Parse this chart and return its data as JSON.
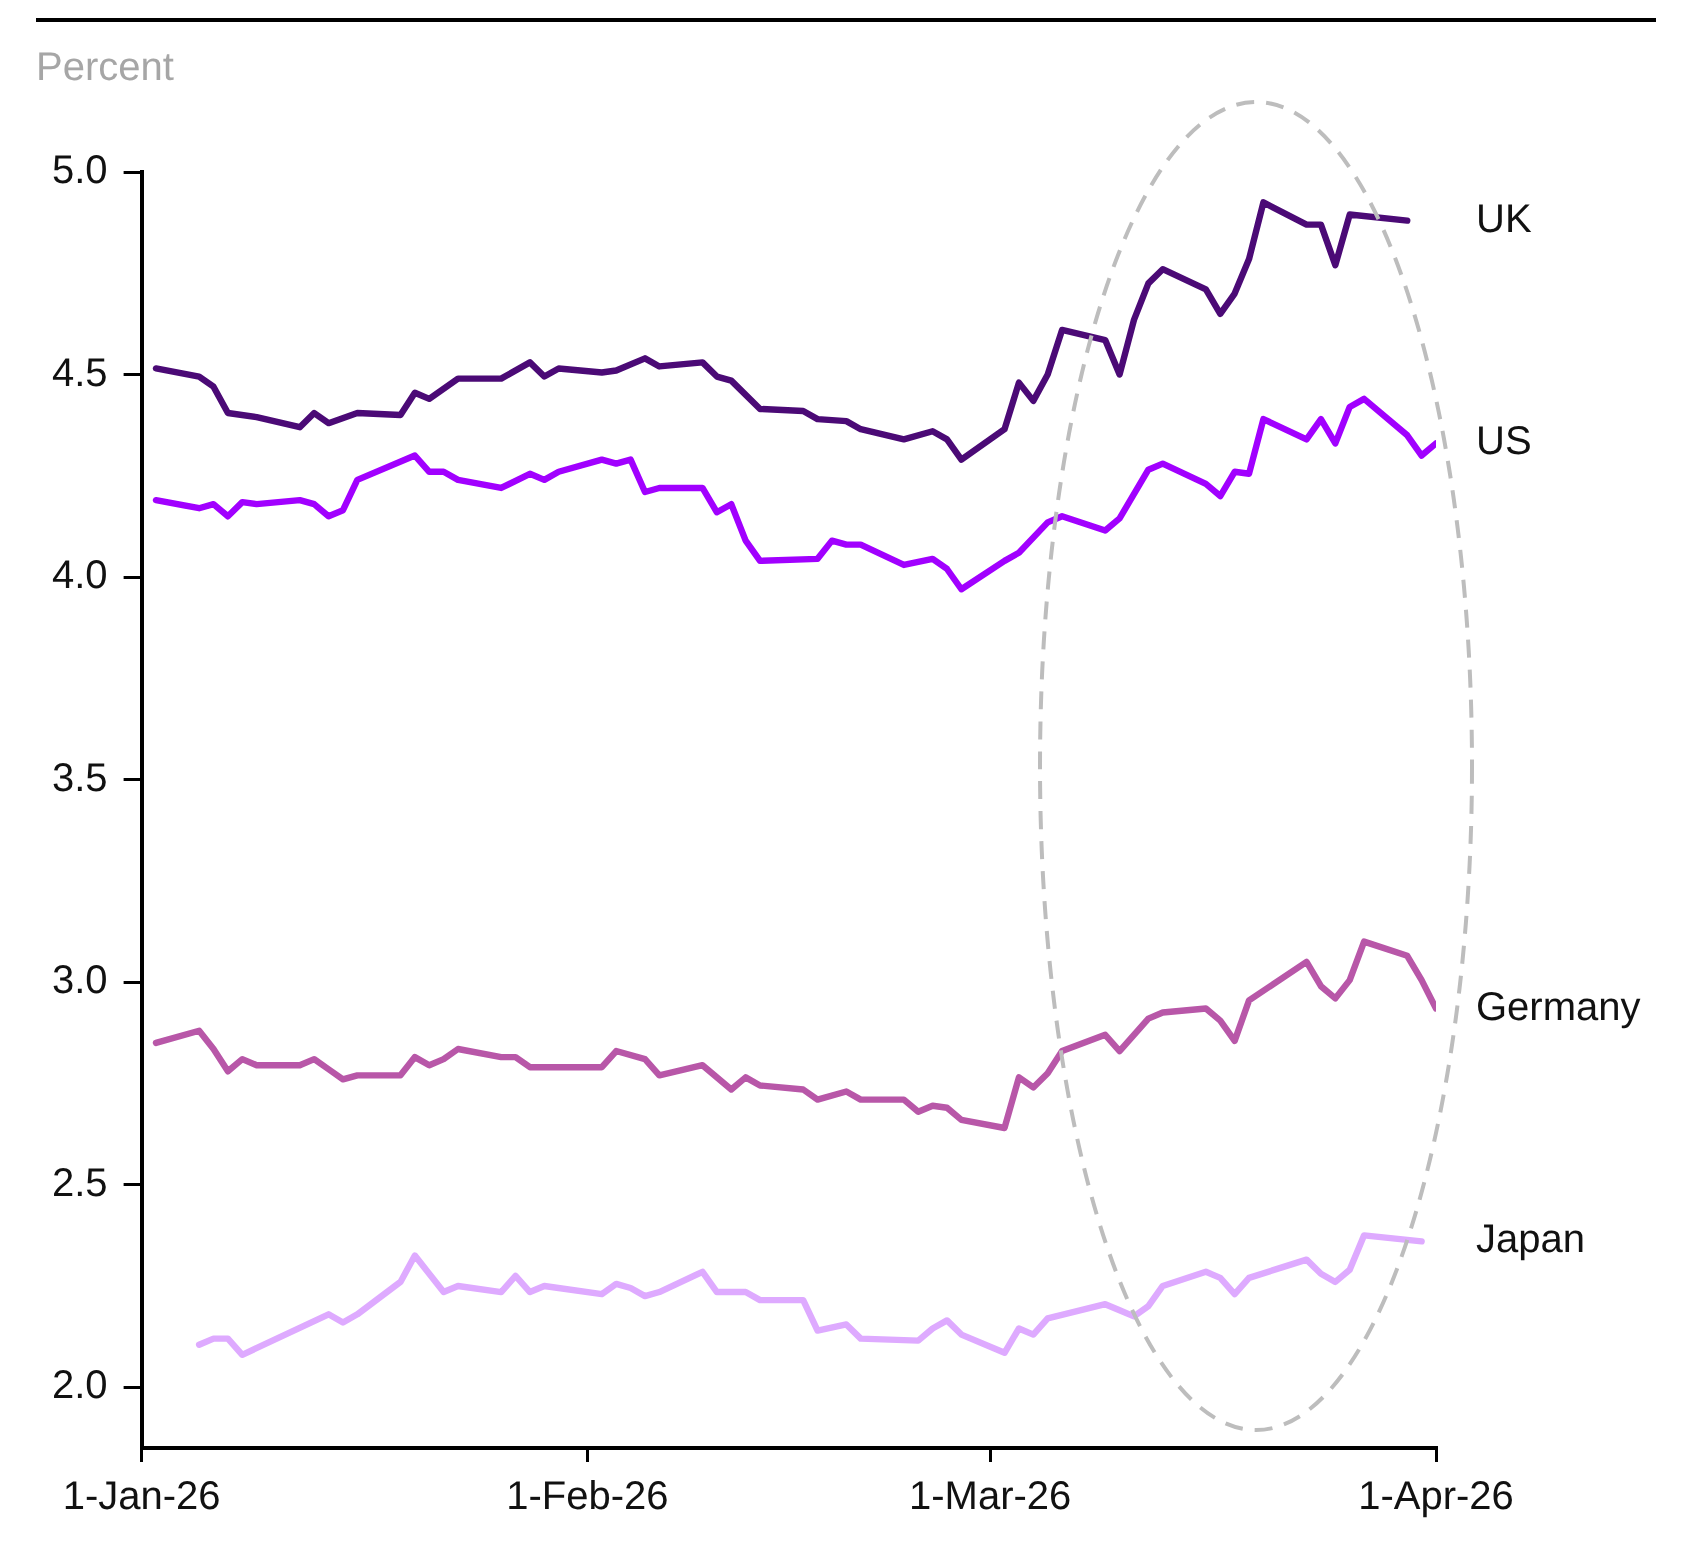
{
  "chart_data": {
    "type": "line",
    "ylabel": "Percent",
    "xlim": [
      "2026-01-01",
      "2026-04-01"
    ],
    "xticks": [
      {
        "value": "2026-01-01",
        "label": "1-Jan-26"
      },
      {
        "value": "2026-02-01",
        "label": "1-Feb-26"
      },
      {
        "value": "2026-03-01",
        "label": "1-Mar-26"
      },
      {
        "value": "2026-04-01",
        "label": "1-Apr-26"
      }
    ],
    "ylim": [
      1.85,
      5.0
    ],
    "yticks": [
      {
        "value": 2.0,
        "label": "2.0"
      },
      {
        "value": 2.5,
        "label": "2.5"
      },
      {
        "value": 3.0,
        "label": "3.0"
      },
      {
        "value": 3.5,
        "label": "3.5"
      },
      {
        "value": 4.0,
        "label": "4.0"
      },
      {
        "value": 4.5,
        "label": "4.5"
      },
      {
        "value": 5.0,
        "label": "5.0"
      }
    ],
    "grid": false,
    "legend": false,
    "marker": "none",
    "line_style": "solid",
    "series": [
      {
        "name": "UK",
        "color": "#4b0a76",
        "x": [
          "2026-01-02",
          "2026-01-05",
          "2026-01-06",
          "2026-01-07",
          "2026-01-09",
          "2026-01-12",
          "2026-01-13",
          "2026-01-14",
          "2026-01-16",
          "2026-01-19",
          "2026-01-20",
          "2026-01-21",
          "2026-01-23",
          "2026-01-26",
          "2026-01-28",
          "2026-01-29",
          "2026-01-30",
          "2026-02-02",
          "2026-02-03",
          "2026-02-05",
          "2026-02-06",
          "2026-02-09",
          "2026-02-10",
          "2026-02-11",
          "2026-02-13",
          "2026-02-16",
          "2026-02-17",
          "2026-02-19",
          "2026-02-20",
          "2026-02-23",
          "2026-02-25",
          "2026-02-26",
          "2026-02-27",
          "2026-03-02",
          "2026-03-03",
          "2026-03-04",
          "2026-03-05",
          "2026-03-06",
          "2026-03-09",
          "2026-03-10",
          "2026-03-11",
          "2026-03-12",
          "2026-03-13",
          "2026-03-16",
          "2026-03-17",
          "2026-03-18",
          "2026-03-19",
          "2026-03-20",
          "2026-03-23",
          "2026-03-24",
          "2026-03-25",
          "2026-03-26",
          "2026-03-30"
        ],
        "values": [
          4.515,
          4.495,
          4.47,
          4.405,
          4.395,
          4.37,
          4.405,
          4.38,
          4.405,
          4.4,
          4.455,
          4.44,
          4.49,
          4.49,
          4.53,
          4.495,
          4.515,
          4.505,
          4.51,
          4.54,
          4.52,
          4.53,
          4.495,
          4.485,
          4.415,
          4.41,
          4.39,
          4.385,
          4.365,
          4.34,
          4.36,
          4.34,
          4.29,
          4.365,
          4.48,
          4.435,
          4.5,
          4.61,
          4.585,
          4.5,
          4.635,
          4.725,
          4.76,
          4.71,
          4.65,
          4.7,
          4.785,
          4.925,
          4.87,
          4.87,
          4.77,
          4.895,
          4.88
        ]
      },
      {
        "name": "US",
        "color": "#a100ff",
        "x": [
          "2026-01-02",
          "2026-01-05",
          "2026-01-06",
          "2026-01-07",
          "2026-01-08",
          "2026-01-09",
          "2026-01-12",
          "2026-01-13",
          "2026-01-14",
          "2026-01-15",
          "2026-01-16",
          "2026-01-20",
          "2026-01-21",
          "2026-01-22",
          "2026-01-23",
          "2026-01-26",
          "2026-01-28",
          "2026-01-29",
          "2026-01-30",
          "2026-02-02",
          "2026-02-03",
          "2026-02-04",
          "2026-02-05",
          "2026-02-06",
          "2026-02-09",
          "2026-02-10",
          "2026-02-11",
          "2026-02-12",
          "2026-02-13",
          "2026-02-17",
          "2026-02-18",
          "2026-02-19",
          "2026-02-20",
          "2026-02-23",
          "2026-02-25",
          "2026-02-26",
          "2026-02-27",
          "2026-03-02",
          "2026-03-03",
          "2026-03-05",
          "2026-03-06",
          "2026-03-09",
          "2026-03-10",
          "2026-03-12",
          "2026-03-13",
          "2026-03-16",
          "2026-03-17",
          "2026-03-18",
          "2026-03-19",
          "2026-03-20",
          "2026-03-23",
          "2026-03-24",
          "2026-03-25",
          "2026-03-26",
          "2026-03-27",
          "2026-03-30",
          "2026-03-31",
          "2026-04-01"
        ],
        "values": [
          4.19,
          4.17,
          4.18,
          4.15,
          4.185,
          4.18,
          4.19,
          4.18,
          4.15,
          4.165,
          4.24,
          4.3,
          4.26,
          4.26,
          4.24,
          4.22,
          4.255,
          4.24,
          4.26,
          4.29,
          4.28,
          4.29,
          4.21,
          4.22,
          4.22,
          4.16,
          4.18,
          4.09,
          4.04,
          4.045,
          4.09,
          4.08,
          4.08,
          4.03,
          4.045,
          4.02,
          3.97,
          4.04,
          4.06,
          4.135,
          4.15,
          4.115,
          4.145,
          4.265,
          4.28,
          4.23,
          4.2,
          4.26,
          4.255,
          4.39,
          4.34,
          4.39,
          4.33,
          4.42,
          4.44,
          4.35,
          4.3,
          4.33
        ]
      },
      {
        "name": "Germany",
        "color": "#b857a8",
        "x": [
          "2026-01-02",
          "2026-01-05",
          "2026-01-06",
          "2026-01-07",
          "2026-01-08",
          "2026-01-09",
          "2026-01-12",
          "2026-01-13",
          "2026-01-14",
          "2026-01-15",
          "2026-01-16",
          "2026-01-19",
          "2026-01-20",
          "2026-01-21",
          "2026-01-22",
          "2026-01-23",
          "2026-01-26",
          "2026-01-27",
          "2026-01-28",
          "2026-02-02",
          "2026-02-03",
          "2026-02-05",
          "2026-02-06",
          "2026-02-09",
          "2026-02-11",
          "2026-02-12",
          "2026-02-13",
          "2026-02-16",
          "2026-02-17",
          "2026-02-19",
          "2026-02-20",
          "2026-02-23",
          "2026-02-24",
          "2026-02-25",
          "2026-02-26",
          "2026-02-27",
          "2026-03-02",
          "2026-03-03",
          "2026-03-04",
          "2026-03-05",
          "2026-03-06",
          "2026-03-09",
          "2026-03-10",
          "2026-03-12",
          "2026-03-13",
          "2026-03-16",
          "2026-03-17",
          "2026-03-18",
          "2026-03-19",
          "2026-03-23",
          "2026-03-24",
          "2026-03-25",
          "2026-03-26",
          "2026-03-27",
          "2026-03-30",
          "2026-03-31",
          "2026-04-01"
        ],
        "values": [
          2.85,
          2.88,
          2.835,
          2.78,
          2.81,
          2.795,
          2.795,
          2.81,
          2.785,
          2.76,
          2.77,
          2.77,
          2.815,
          2.795,
          2.81,
          2.835,
          2.815,
          2.815,
          2.79,
          2.79,
          2.83,
          2.81,
          2.77,
          2.795,
          2.735,
          2.765,
          2.745,
          2.735,
          2.71,
          2.73,
          2.71,
          2.71,
          2.68,
          2.695,
          2.69,
          2.66,
          2.64,
          2.765,
          2.74,
          2.775,
          2.83,
          2.87,
          2.83,
          2.91,
          2.925,
          2.935,
          2.905,
          2.855,
          2.955,
          3.05,
          2.99,
          2.96,
          3.005,
          3.1,
          3.065,
          3.005,
          2.935
        ]
      },
      {
        "name": "Japan",
        "color": "#deaaff",
        "x": [
          "2026-01-05",
          "2026-01-06",
          "2026-01-07",
          "2026-01-08",
          "2026-01-14",
          "2026-01-15",
          "2026-01-16",
          "2026-01-19",
          "2026-01-20",
          "2026-01-22",
          "2026-01-23",
          "2026-01-26",
          "2026-01-27",
          "2026-01-28",
          "2026-01-29",
          "2026-02-02",
          "2026-02-03",
          "2026-02-04",
          "2026-02-05",
          "2026-02-06",
          "2026-02-09",
          "2026-02-10",
          "2026-02-12",
          "2026-02-13",
          "2026-02-16",
          "2026-02-17",
          "2026-02-19",
          "2026-02-20",
          "2026-02-24",
          "2026-02-25",
          "2026-02-26",
          "2026-02-27",
          "2026-03-02",
          "2026-03-03",
          "2026-03-04",
          "2026-03-05",
          "2026-03-09",
          "2026-03-10",
          "2026-03-11",
          "2026-03-12",
          "2026-03-13",
          "2026-03-16",
          "2026-03-17",
          "2026-03-18",
          "2026-03-19",
          "2026-03-23",
          "2026-03-24",
          "2026-03-25",
          "2026-03-26",
          "2026-03-27",
          "2026-03-31"
        ],
        "values": [
          2.105,
          2.12,
          2.12,
          2.08,
          2.18,
          2.16,
          2.18,
          2.26,
          2.325,
          2.235,
          2.25,
          2.235,
          2.275,
          2.235,
          2.25,
          2.23,
          2.255,
          2.245,
          2.225,
          2.235,
          2.285,
          2.235,
          2.235,
          2.215,
          2.215,
          2.14,
          2.155,
          2.12,
          2.115,
          2.145,
          2.165,
          2.13,
          2.085,
          2.145,
          2.13,
          2.17,
          2.205,
          2.19,
          2.175,
          2.2,
          2.25,
          2.285,
          2.27,
          2.23,
          2.27,
          2.315,
          2.28,
          2.26,
          2.29,
          2.375,
          2.36
        ]
      }
    ]
  }
}
